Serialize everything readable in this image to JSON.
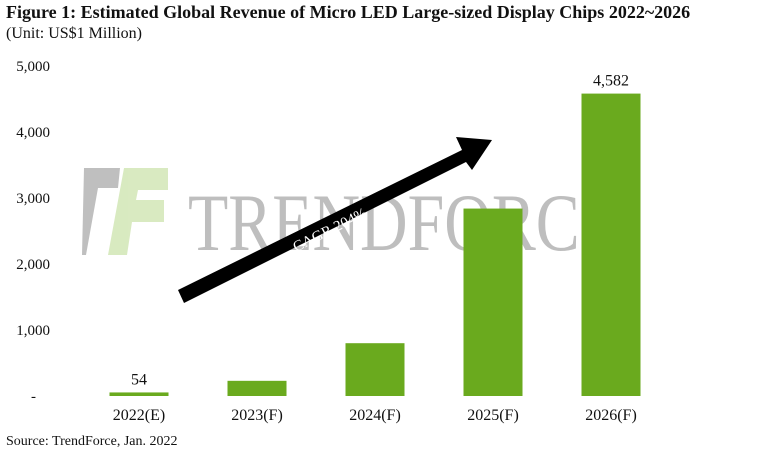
{
  "chart_data": {
    "type": "bar",
    "title": "Figure 1: Estimated Global Revenue of Micro LED Large-sized Display Chips 2022~2026",
    "subtitle": "(Unit: US$1 Million)",
    "categories": [
      "2022(E)",
      "2023(F)",
      "2024(F)",
      "2025(F)",
      "2026(F)"
    ],
    "values": [
      54,
      230,
      800,
      2840,
      4582
    ],
    "data_labels": [
      "54",
      "",
      "",
      "",
      "4,582"
    ],
    "ylim": [
      0,
      5000
    ],
    "yticks": [
      0,
      1000,
      2000,
      3000,
      4000,
      5000
    ],
    "ytick_labels": [
      "-",
      "1,000",
      "2,000",
      "3,000",
      "4,000",
      "5,000"
    ],
    "grid": false,
    "bar_color": "#6aaa1e",
    "annotation": "CAGR 204%",
    "watermark": "TRENDFORCE",
    "source": "Source: TrendForce, Jan. 2022"
  }
}
